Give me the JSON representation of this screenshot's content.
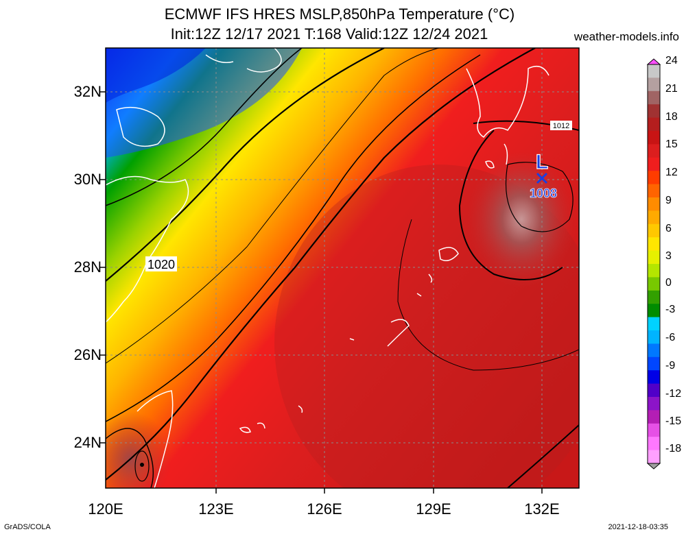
{
  "header": {
    "title_line1": "ECMWF IFS HRES MSLP,850hPa Temperature (°C)",
    "title_line2": "Init:12Z 12/17 2021 T:168 Valid:12Z 12/24 2021",
    "site": "weather-models.info"
  },
  "footer": {
    "left": "GrADS/COLA",
    "right": "2021-12-18-03:35"
  },
  "axes": {
    "lat_labels": [
      "32N",
      "30N",
      "28N",
      "26N",
      "24N"
    ],
    "lon_labels": [
      "120E",
      "123E",
      "126E",
      "129E",
      "132E"
    ]
  },
  "map": {
    "contour_labels": [
      "1012",
      "1020"
    ],
    "low_marker": {
      "symbol": "L",
      "pressure": "1008"
    },
    "colors": {
      "coast": "#ffffff",
      "grid": "#8c8c8c",
      "isobar": "#000000",
      "low": "#1a3fe0"
    }
  },
  "colorbar": {
    "labels": [
      "24",
      "21",
      "18",
      "15",
      "12",
      "9",
      "6",
      "3",
      "0",
      "-3",
      "-6",
      "-9",
      "-12",
      "-15",
      "-18"
    ],
    "colors": [
      "#c8c8c8",
      "#b4a0a0",
      "#a06464",
      "#a03232",
      "#b41e1e",
      "#c81414",
      "#dc1e1e",
      "#f01e1e",
      "#ff3c00",
      "#ff6400",
      "#ff8c00",
      "#ffaa00",
      "#ffc800",
      "#ffe600",
      "#e6f000",
      "#b4e600",
      "#78c800",
      "#32a000",
      "#008c00",
      "#00d2ff",
      "#00b4ff",
      "#0078ff",
      "#0046ff",
      "#0000e6",
      "#5000c8",
      "#8c14c8",
      "#b41eb4",
      "#e650e6",
      "#ff78ff",
      "#ffa0ff"
    ]
  }
}
